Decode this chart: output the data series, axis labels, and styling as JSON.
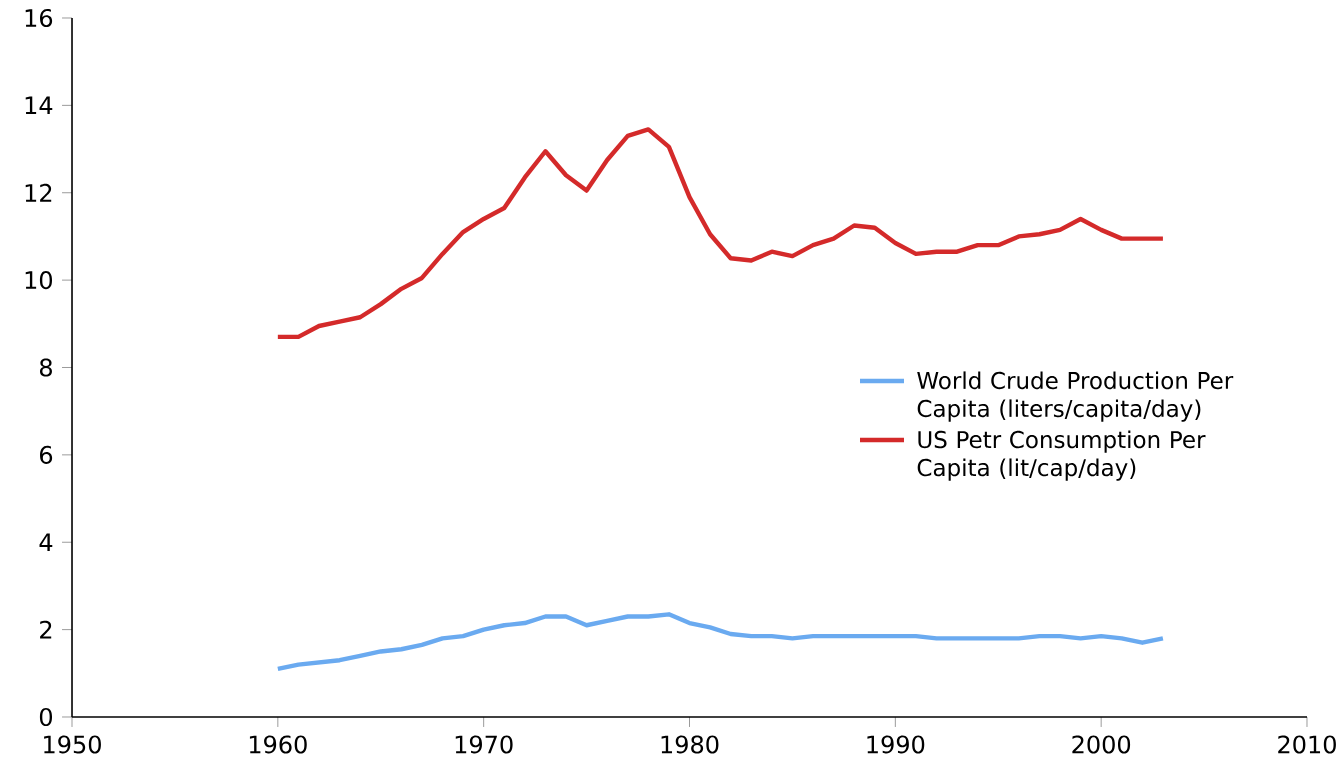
{
  "chart_data": {
    "type": "line",
    "x": [
      1960,
      1961,
      1962,
      1963,
      1964,
      1965,
      1966,
      1967,
      1968,
      1969,
      1970,
      1971,
      1972,
      1973,
      1974,
      1975,
      1976,
      1977,
      1978,
      1979,
      1980,
      1981,
      1982,
      1983,
      1984,
      1985,
      1986,
      1987,
      1988,
      1989,
      1990,
      1991,
      1992,
      1993,
      1994,
      1995,
      1996,
      1997,
      1998,
      1999,
      2000,
      2001,
      2002,
      2003
    ],
    "series": [
      {
        "name": "World Crude Production Per Capita (liters/capita/day)",
        "color": "#6aaaf0",
        "values": [
          1.1,
          1.2,
          1.25,
          1.3,
          1.4,
          1.5,
          1.55,
          1.65,
          1.8,
          1.85,
          2.0,
          2.1,
          2.15,
          2.3,
          2.3,
          2.1,
          2.2,
          2.3,
          2.3,
          2.35,
          2.15,
          2.05,
          1.9,
          1.85,
          1.85,
          1.8,
          1.85,
          1.85,
          1.85,
          1.85,
          1.85,
          1.85,
          1.8,
          1.8,
          1.8,
          1.8,
          1.8,
          1.85,
          1.85,
          1.8,
          1.85,
          1.8,
          1.7,
          1.8
        ]
      },
      {
        "name": "US Petr Consumption Per Capita (lit/cap/day)",
        "color": "#d42a2a",
        "values": [
          8.7,
          8.7,
          8.95,
          9.05,
          9.15,
          9.45,
          9.8,
          10.05,
          10.6,
          11.1,
          11.4,
          11.65,
          12.35,
          12.95,
          12.4,
          12.05,
          12.75,
          13.3,
          13.45,
          13.05,
          11.9,
          11.05,
          10.5,
          10.45,
          10.65,
          10.55,
          10.8,
          10.95,
          11.25,
          11.2,
          10.85,
          10.6,
          10.65,
          10.65,
          10.8,
          10.8,
          11.0,
          11.05,
          11.15,
          11.4,
          11.15,
          10.95,
          10.95,
          10.95
        ]
      }
    ],
    "xlim": [
      1950,
      2010
    ],
    "xticks": [
      1950,
      1960,
      1970,
      1980,
      1990,
      2000,
      2010
    ],
    "ylim": [
      0,
      16
    ],
    "yticks": [
      0,
      2,
      4,
      6,
      8,
      10,
      12,
      14,
      16
    ],
    "legend": "right",
    "line_style": "solid",
    "marker": "none"
  }
}
